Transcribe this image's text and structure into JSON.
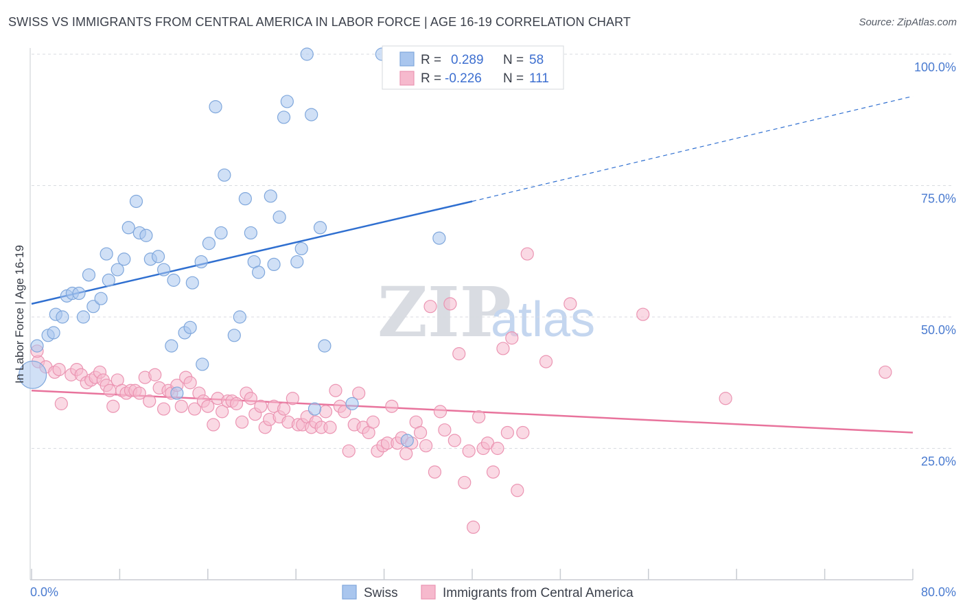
{
  "header": {
    "title": "SWISS VS IMMIGRANTS FROM CENTRAL AMERICA IN LABOR FORCE | AGE 16-19 CORRELATION CHART",
    "source": "Source: ZipAtlas.com"
  },
  "watermark": {
    "zip": "ZIP",
    "atlas": "atlas"
  },
  "legend": {
    "row1": {
      "r_label": "R =",
      "r_value": "0.289",
      "n_label": "N =",
      "n_value": "58"
    },
    "row2": {
      "r_label": "R =",
      "r_value": "-0.226",
      "n_label": "N =",
      "n_value": "111"
    }
  },
  "bottom_legend": {
    "swiss": "Swiss",
    "immigrants": "Immigrants from Central America"
  },
  "colors": {
    "swiss_fill": "#a9c6ee",
    "swiss_stroke": "#7fa7dc",
    "swiss_line": "#2f6fd0",
    "imm_fill": "#f6b9cd",
    "imm_stroke": "#eb94b2",
    "imm_line": "#e8739c",
    "tick": "#4a7bd0",
    "grid": "#d8dbe0"
  },
  "chart_data": {
    "type": "scatter",
    "title": "SWISS VS IMMIGRANTS FROM CENTRAL AMERICA IN LABOR FORCE | AGE 16-19 CORRELATION CHART",
    "xlabel": "",
    "ylabel": "In Labor Force | Age 16-19",
    "xlim": [
      0,
      80
    ],
    "ylim": [
      0,
      100
    ],
    "x_tick_labels": {
      "min": "0.0%",
      "max": "80.0%"
    },
    "y_ticks": [
      {
        "value": 100,
        "label": "100.0%"
      },
      {
        "value": 75,
        "label": "75.0%"
      },
      {
        "value": 50,
        "label": "50.0%"
      },
      {
        "value": 25,
        "label": "25.0%"
      }
    ],
    "series": [
      {
        "name": "Swiss",
        "r": 0.289,
        "n": 58,
        "trend": {
          "x0": 0,
          "y0": 52.5,
          "x1": 40,
          "y1": 72.0,
          "dash_x1": 80,
          "dash_y1": 92.0
        },
        "points": [
          [
            0.1,
            39,
            "big"
          ],
          [
            0.5,
            44.5
          ],
          [
            1.5,
            46.5
          ],
          [
            2.0,
            47
          ],
          [
            2.2,
            50.5
          ],
          [
            2.8,
            50
          ],
          [
            3.2,
            54
          ],
          [
            3.7,
            54.5
          ],
          [
            4.3,
            54.5
          ],
          [
            4.7,
            50
          ],
          [
            5.2,
            58
          ],
          [
            5.6,
            52
          ],
          [
            6.3,
            53.5
          ],
          [
            6.8,
            62
          ],
          [
            7.0,
            57
          ],
          [
            7.8,
            59
          ],
          [
            8.4,
            61
          ],
          [
            8.8,
            67
          ],
          [
            9.5,
            72
          ],
          [
            9.8,
            66
          ],
          [
            10.4,
            65.5
          ],
          [
            10.8,
            61
          ],
          [
            11.5,
            61.5
          ],
          [
            12.0,
            59
          ],
          [
            12.7,
            44.5
          ],
          [
            12.9,
            57
          ],
          [
            13.2,
            35.5
          ],
          [
            13.9,
            47
          ],
          [
            14.4,
            48
          ],
          [
            14.6,
            56.5
          ],
          [
            15.4,
            60.5
          ],
          [
            15.5,
            41
          ],
          [
            16.1,
            64
          ],
          [
            16.7,
            90
          ],
          [
            17.2,
            66
          ],
          [
            17.5,
            77
          ],
          [
            18.4,
            46.5
          ],
          [
            18.9,
            50
          ],
          [
            19.4,
            72.5
          ],
          [
            19.9,
            66
          ],
          [
            20.2,
            60.5
          ],
          [
            20.6,
            58.5
          ],
          [
            21.7,
            73
          ],
          [
            22.0,
            60
          ],
          [
            22.5,
            69
          ],
          [
            22.9,
            88
          ],
          [
            23.2,
            91
          ],
          [
            24.1,
            60.5
          ],
          [
            24.5,
            63
          ],
          [
            25.0,
            100
          ],
          [
            25.4,
            88.5
          ],
          [
            25.7,
            32.5
          ],
          [
            26.2,
            67
          ],
          [
            26.6,
            44.5
          ],
          [
            29.1,
            33.5
          ],
          [
            31.8,
            100
          ],
          [
            34.1,
            26.5
          ],
          [
            37.0,
            65
          ]
        ]
      },
      {
        "name": "Immigrants from Central America",
        "r": -0.226,
        "n": 111,
        "trend": {
          "x0": 0,
          "y0": 36.0,
          "x1": 80,
          "y1": 28.0
        },
        "points": [
          [
            0.6,
            41.5
          ],
          [
            0.5,
            43.5
          ],
          [
            1.3,
            40.5
          ],
          [
            2.1,
            39.5
          ],
          [
            2.5,
            40
          ],
          [
            2.7,
            33.5
          ],
          [
            3.6,
            39
          ],
          [
            4.1,
            40
          ],
          [
            4.5,
            39
          ],
          [
            5.0,
            37.5
          ],
          [
            5.4,
            38
          ],
          [
            5.8,
            38.5
          ],
          [
            6.2,
            39.5
          ],
          [
            6.5,
            38
          ],
          [
            6.8,
            37
          ],
          [
            7.1,
            36
          ],
          [
            7.4,
            33
          ],
          [
            7.8,
            38
          ],
          [
            8.2,
            36
          ],
          [
            8.6,
            35.5
          ],
          [
            9.0,
            36
          ],
          [
            9.4,
            36
          ],
          [
            9.8,
            35.5
          ],
          [
            10.3,
            38.5
          ],
          [
            10.7,
            34
          ],
          [
            11.2,
            39
          ],
          [
            11.6,
            36.5
          ],
          [
            12.0,
            32.5
          ],
          [
            12.4,
            36
          ],
          [
            12.7,
            35.5
          ],
          [
            13.2,
            37
          ],
          [
            13.6,
            33
          ],
          [
            14.0,
            38.5
          ],
          [
            14.4,
            37.5
          ],
          [
            14.8,
            32.5
          ],
          [
            15.2,
            35.5
          ],
          [
            15.6,
            34
          ],
          [
            16.0,
            33
          ],
          [
            16.5,
            29.5
          ],
          [
            16.9,
            34.5
          ],
          [
            17.3,
            32
          ],
          [
            17.8,
            34
          ],
          [
            18.2,
            34
          ],
          [
            18.6,
            33.5
          ],
          [
            19.1,
            30
          ],
          [
            19.5,
            35.5
          ],
          [
            19.9,
            34.5
          ],
          [
            20.3,
            31.5
          ],
          [
            20.8,
            33
          ],
          [
            21.2,
            29
          ],
          [
            21.6,
            30.5
          ],
          [
            22.0,
            33
          ],
          [
            22.5,
            31
          ],
          [
            22.9,
            32.5
          ],
          [
            23.3,
            30
          ],
          [
            23.7,
            34.5
          ],
          [
            24.2,
            29.5
          ],
          [
            24.6,
            29.5
          ],
          [
            25.0,
            31
          ],
          [
            25.4,
            29
          ],
          [
            25.8,
            30
          ],
          [
            26.3,
            29
          ],
          [
            26.7,
            32
          ],
          [
            27.1,
            29
          ],
          [
            27.6,
            36
          ],
          [
            28.0,
            33
          ],
          [
            28.4,
            32
          ],
          [
            28.8,
            24.5
          ],
          [
            29.3,
            29.5
          ],
          [
            29.7,
            35.5
          ],
          [
            30.1,
            29
          ],
          [
            30.6,
            28
          ],
          [
            31.0,
            30
          ],
          [
            31.4,
            24.5
          ],
          [
            31.9,
            25.5
          ],
          [
            32.3,
            26
          ],
          [
            32.7,
            33
          ],
          [
            33.2,
            26
          ],
          [
            33.6,
            27
          ],
          [
            34.0,
            24
          ],
          [
            34.5,
            26
          ],
          [
            34.9,
            30
          ],
          [
            35.3,
            28
          ],
          [
            35.8,
            25.5
          ],
          [
            36.2,
            52
          ],
          [
            36.6,
            20.5
          ],
          [
            37.1,
            32
          ],
          [
            37.5,
            28.5
          ],
          [
            38.0,
            52.5
          ],
          [
            38.4,
            26.5
          ],
          [
            38.8,
            43
          ],
          [
            39.3,
            18.5
          ],
          [
            39.7,
            24.5
          ],
          [
            40.1,
            10
          ],
          [
            40.6,
            31
          ],
          [
            41.0,
            25
          ],
          [
            41.4,
            26
          ],
          [
            41.9,
            20.5
          ],
          [
            42.3,
            25
          ],
          [
            42.8,
            44
          ],
          [
            43.2,
            28
          ],
          [
            43.6,
            46
          ],
          [
            44.1,
            17
          ],
          [
            44.6,
            28
          ],
          [
            45.0,
            62
          ],
          [
            46.7,
            41.5
          ],
          [
            48.9,
            52.5
          ],
          [
            55.5,
            50.5
          ],
          [
            63.0,
            34.5
          ],
          [
            77.5,
            39.5
          ]
        ]
      }
    ]
  }
}
